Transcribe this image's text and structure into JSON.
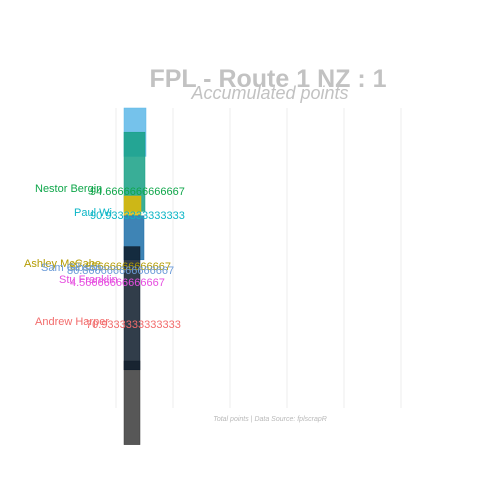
{
  "chart_data": {
    "type": "bar",
    "orientation": "horizontal",
    "animated_snapshot": true,
    "title": "FPL - Route 1 NZ : 1",
    "subtitle": "Accumulated points",
    "caption": "Total points | Data Source: fplscrapR",
    "xlabel": "",
    "ylabel": "",
    "grid": "vertical",
    "legend": "none",
    "series": [
      {
        "name": "Nestor Bergin",
        "value_label": "94.6666666666667",
        "value": 94.6666666666667,
        "rank": 4,
        "color": "#0fa64a"
      },
      {
        "name": "Paul Wi",
        "value_label": "90.9333333333333",
        "value": 90.9333333333333,
        "rank": 5,
        "color": "#0bb5c6"
      },
      {
        "name": "Ashley McCabe",
        "value_label": "87.65666666666667",
        "value": 87.6566666666667,
        "rank": 9,
        "color": "#b39b00"
      },
      {
        "name": "Sam Gibson",
        "value_label": "86.866666666666667",
        "value": 86.8666666666667,
        "rank": 9,
        "color": "#6b9bd8"
      },
      {
        "name": "Stu Franklin",
        "value_label": "4.56666666666667",
        "value": 4.56666666666667,
        "rank": 10,
        "color": "#e64de0"
      },
      {
        "name": "Andrew Harper",
        "value_label": "70.9333333333333",
        "value": 70.9333333333333,
        "rank": 12,
        "color": "#f26b6b"
      }
    ]
  }
}
